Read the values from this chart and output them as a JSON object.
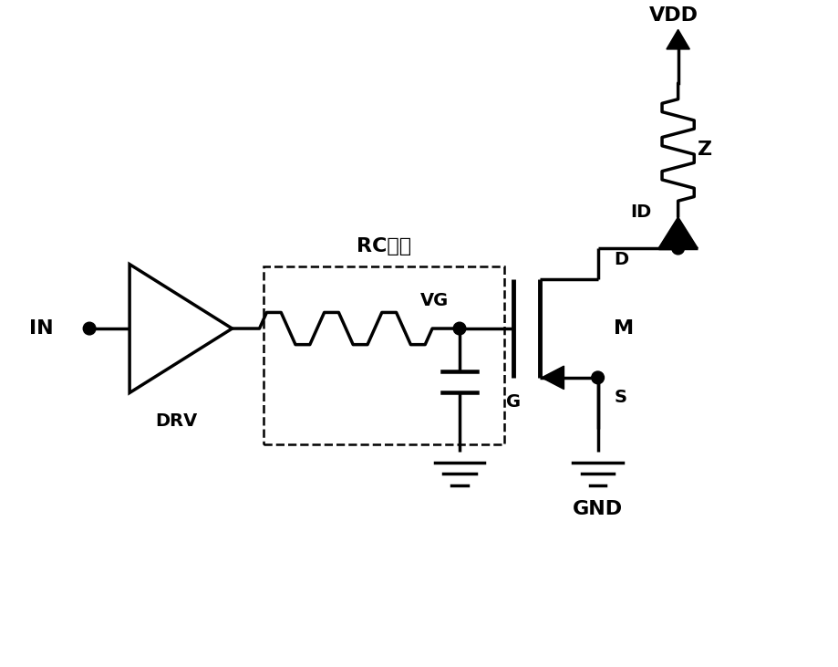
{
  "bg_color": "#ffffff",
  "line_color": "#000000",
  "line_width": 2.5,
  "fig_width": 9.2,
  "fig_height": 7.31,
  "labels": {
    "IN": "IN",
    "DRV": "DRV",
    "RC": "RC延时",
    "VG": "VG",
    "G": "G",
    "VDD": "VDD",
    "Z": "Z",
    "ID": "ID",
    "D": "D",
    "M": "M",
    "S": "S",
    "GND": "GND"
  },
  "font_size": 14,
  "font_size_large": 16
}
